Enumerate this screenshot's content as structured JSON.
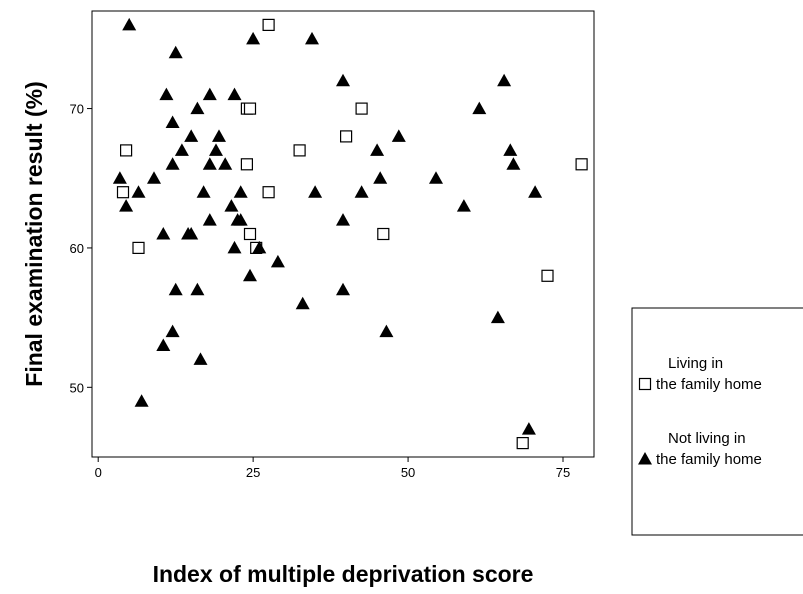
{
  "chart_data": {
    "type": "scatter",
    "xlabel": "Index of multiple deprivation score",
    "ylabel": "Final examination result (%)",
    "xlim": [
      -1,
      80
    ],
    "ylim": [
      45,
      77
    ],
    "x_ticks": [
      0,
      25,
      50,
      75
    ],
    "y_ticks": [
      50,
      60,
      70
    ],
    "grid": false,
    "legend_position": "right",
    "series": [
      {
        "name_lines": [
          "Living in",
          "the family home"
        ],
        "marker": "square-open",
        "points": [
          [
            4,
            64
          ],
          [
            4.5,
            67
          ],
          [
            6.5,
            60
          ],
          [
            24,
            70
          ],
          [
            24.5,
            70
          ],
          [
            24,
            66
          ],
          [
            24.5,
            61
          ],
          [
            25.5,
            60
          ],
          [
            27.5,
            76
          ],
          [
            27.5,
            64
          ],
          [
            32.5,
            67
          ],
          [
            40,
            68
          ],
          [
            42.5,
            70
          ],
          [
            46,
            61
          ],
          [
            68.5,
            46
          ],
          [
            72.5,
            58
          ],
          [
            78,
            66
          ]
        ]
      },
      {
        "name_lines": [
          "Not living in",
          "the family home"
        ],
        "marker": "triangle-filled",
        "points": [
          [
            3.5,
            65
          ],
          [
            4.5,
            63
          ],
          [
            5,
            76
          ],
          [
            6.5,
            64
          ],
          [
            7,
            49
          ],
          [
            9,
            65
          ],
          [
            10.5,
            53
          ],
          [
            10.5,
            61
          ],
          [
            11,
            71
          ],
          [
            12,
            69
          ],
          [
            12,
            66
          ],
          [
            12,
            54
          ],
          [
            12.5,
            57
          ],
          [
            12.5,
            74
          ],
          [
            13.5,
            67
          ],
          [
            14.5,
            61
          ],
          [
            15,
            61
          ],
          [
            15,
            68
          ],
          [
            16,
            70
          ],
          [
            16,
            57
          ],
          [
            16.5,
            52
          ],
          [
            17,
            64
          ],
          [
            18,
            62
          ],
          [
            18,
            66
          ],
          [
            18,
            71
          ],
          [
            19,
            67
          ],
          [
            19.5,
            68
          ],
          [
            20.5,
            66
          ],
          [
            21.5,
            63
          ],
          [
            22,
            60
          ],
          [
            22,
            71
          ],
          [
            22.5,
            62
          ],
          [
            23,
            62
          ],
          [
            23,
            64
          ],
          [
            24.5,
            58
          ],
          [
            25,
            75
          ],
          [
            26,
            60
          ],
          [
            29,
            59
          ],
          [
            33,
            56
          ],
          [
            34.5,
            75
          ],
          [
            35,
            64
          ],
          [
            39.5,
            72
          ],
          [
            39.5,
            62
          ],
          [
            39.5,
            57
          ],
          [
            42.5,
            64
          ],
          [
            45,
            67
          ],
          [
            45.5,
            65
          ],
          [
            46.5,
            54
          ],
          [
            48.5,
            68
          ],
          [
            54.5,
            65
          ],
          [
            59,
            63
          ],
          [
            61.5,
            70
          ],
          [
            64.5,
            55
          ],
          [
            65.5,
            72
          ],
          [
            66.5,
            67
          ],
          [
            67,
            66
          ],
          [
            69.5,
            47
          ],
          [
            70.5,
            64
          ]
        ]
      }
    ]
  }
}
